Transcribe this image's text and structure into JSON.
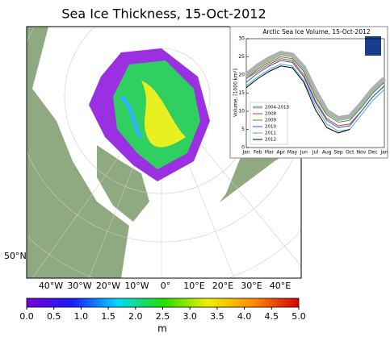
{
  "map": {
    "title": "Sea Ice Thickness, 15-Oct-2012",
    "lat_label": "50°N",
    "lon_labels": [
      "40°W",
      "30°W",
      "20°W",
      "10°W",
      "0°",
      "10°E",
      "20°E",
      "30°E",
      "40°E"
    ],
    "colorbar": {
      "label": "m",
      "lim": [
        0,
        5
      ],
      "colors": [
        "#7b00d4",
        "#1a1aff",
        "#00d8ff",
        "#22e000",
        "#f0f000",
        "#ff8c00",
        "#d40000"
      ],
      "ticks": [
        {
          "value": 0,
          "label": "0.0"
        },
        {
          "value": 0.5,
          "label": "0.5"
        },
        {
          "value": 1,
          "label": "1.0"
        },
        {
          "value": 1.5,
          "label": "1.5"
        },
        {
          "value": 2,
          "label": "2.0"
        },
        {
          "value": 2.5,
          "label": "2.5"
        },
        {
          "value": 3,
          "label": "3.0"
        },
        {
          "value": 3.5,
          "label": "3.5"
        },
        {
          "value": 4,
          "label": "4.0"
        },
        {
          "value": 4.5,
          "label": "4.5"
        },
        {
          "value": 5,
          "label": "5.0"
        }
      ]
    }
  },
  "chart_data": {
    "type": "line",
    "title": "Arctic Sea Ice Volume, 15-Oct-2012",
    "y_label": "Volume, [1000 km³]",
    "categories": [
      "Jan",
      "Feb",
      "Mar",
      "Apr",
      "May",
      "Jun",
      "Jul",
      "Aug",
      "Sep",
      "Oct",
      "Nov",
      "Dec",
      "Jan"
    ],
    "ylim": [
      0,
      30
    ],
    "yticks": [
      0,
      5,
      10,
      15,
      20,
      25,
      30
    ],
    "series": [
      {
        "name": "2004-2013",
        "color": "#b0b0b0",
        "values": [
          20,
          22.5,
          24.5,
          26,
          25.5,
          22,
          15.5,
          10,
          8,
          8.5,
          12,
          16,
          19
        ]
      },
      {
        "name": "2008",
        "color": "#e03030",
        "values": [
          19,
          21,
          23,
          24.5,
          24,
          20,
          13,
          8,
          6,
          6.5,
          10,
          14,
          17
        ]
      },
      {
        "name": "2009",
        "color": "#30a030",
        "values": [
          19,
          21.5,
          23.5,
          25,
          24.5,
          21,
          14,
          9,
          7,
          7.5,
          11,
          15,
          18
        ]
      },
      {
        "name": "2010",
        "color": "#3050d0",
        "values": [
          18,
          20.5,
          22.5,
          24,
          23.5,
          19.5,
          12.5,
          7.5,
          5.5,
          6,
          10,
          14,
          17
        ]
      },
      {
        "name": "2011",
        "color": "#40b0c0",
        "values": [
          17,
          19.5,
          21.5,
          23,
          22.5,
          18.5,
          11.5,
          6.5,
          4.5,
          5,
          9,
          13,
          16
        ]
      },
      {
        "name": "2012",
        "color": "#000000",
        "values": [
          16.5,
          19,
          21,
          22.5,
          22,
          18,
          10.5,
          5.5,
          4,
          5,
          null,
          null,
          null
        ]
      }
    ]
  }
}
